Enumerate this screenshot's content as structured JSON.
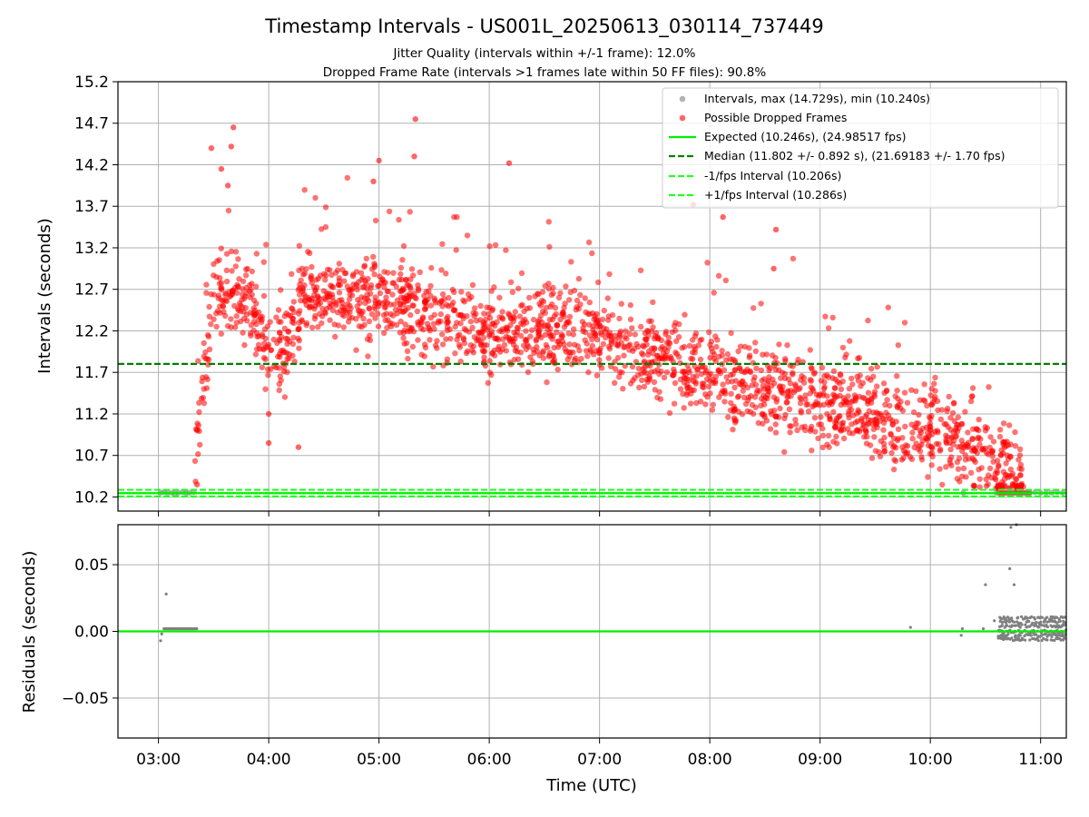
{
  "figure": {
    "title": "Timestamp Intervals - US001L_20250613_030114_737449",
    "subtitle_1": "Jitter Quality (intervals within +/-1 frame): 12.0%",
    "subtitle_2": "Dropped Frame Rate (intervals >1 frames late within 50 FF files): 90.8%"
  },
  "colors": {
    "intervals": "#808080",
    "dropped": "#ff0000",
    "expected": "#00ee00",
    "median": "#008000",
    "bounds": "#22ff22",
    "grid": "#b0b0b0"
  },
  "chart_data": [
    {
      "type": "scatter",
      "xlabel": "",
      "ylabel": "Intervals (seconds)",
      "xlim": [
        2.633,
        11.233
      ],
      "ylim": [
        10.03,
        15.2
      ],
      "yticks": [
        "10.2",
        "10.7",
        "11.2",
        "11.7",
        "12.2",
        "12.7",
        "13.2",
        "13.7",
        "14.2",
        "14.7",
        "15.2"
      ],
      "ytick_values": [
        10.2,
        10.7,
        11.2,
        11.7,
        12.2,
        12.7,
        13.2,
        13.7,
        14.2,
        14.7,
        15.2
      ],
      "grid": true,
      "legend_position": "top-right",
      "legend": [
        "Intervals, max (14.729s), min (10.240s)",
        "Possible Dropped Frames",
        "Expected (10.246s), (24.98517 fps)",
        "Median (11.802 +/- 0.892 s), (21.69183 +/- 1.70 fps)",
        "-1/fps Interval (10.206s)",
        "+1/fps Interval (10.286s)"
      ],
      "lines": [
        {
          "name": "Expected",
          "y": 10.246,
          "style": "solid"
        },
        {
          "name": "Median",
          "y": 11.802,
          "style": "dashed"
        },
        {
          "name": "-1/fps Interval",
          "y": 10.206,
          "style": "dashed"
        },
        {
          "name": "+1/fps Interval",
          "y": 10.286,
          "style": "dashed"
        }
      ],
      "stats": {
        "max": 14.729,
        "min": 10.24,
        "expected": 10.246,
        "median": 11.802,
        "std": 0.892
      },
      "series": [
        {
          "name": "Intervals",
          "x": [
            3.02,
            3.05,
            3.08,
            3.12,
            3.15,
            3.18,
            3.22,
            3.25,
            3.28,
            3.32,
            10.3,
            10.6,
            10.7,
            10.75,
            10.8,
            10.85,
            10.9,
            10.95,
            11.0,
            11.05,
            11.1,
            11.15,
            11.2
          ],
          "y": [
            10.25,
            10.26,
            10.25,
            10.25,
            10.24,
            10.25,
            10.26,
            10.25,
            10.25,
            10.26,
            10.25,
            10.25,
            10.25,
            10.25,
            10.24,
            10.25,
            10.25,
            10.26,
            10.25,
            10.25,
            10.25,
            10.26,
            10.25
          ]
        },
        {
          "name": "Possible Dropped Frames",
          "trend_time": [
            3.33,
            3.36,
            3.42,
            3.5,
            3.6,
            3.7,
            3.9,
            4.0,
            4.15,
            4.3,
            4.5,
            4.7,
            5.0,
            5.3,
            5.5,
            5.7,
            6.0,
            6.3,
            6.6,
            7.0,
            7.3,
            7.6,
            7.9,
            8.2,
            8.5,
            8.8,
            9.1,
            9.4,
            9.7,
            10.0,
            10.3,
            10.5,
            10.7,
            10.8,
            10.85
          ],
          "trend_value": [
            10.4,
            11.0,
            11.7,
            12.45,
            12.7,
            12.65,
            12.35,
            11.95,
            11.9,
            12.55,
            12.6,
            12.6,
            12.6,
            12.45,
            12.3,
            12.35,
            12.15,
            12.2,
            12.25,
            12.1,
            11.95,
            11.8,
            11.75,
            11.6,
            11.45,
            11.4,
            11.3,
            11.2,
            11.05,
            11.0,
            10.85,
            10.7,
            10.55,
            10.4,
            10.3
          ],
          "spread": 0.35,
          "notable_points": {
            "x": [
              3.48,
              3.57,
              3.66,
              3.68,
              3.63,
              4.0,
              5.33,
              5.32,
              5.0,
              4.95,
              6.18,
              7.85,
              8.12,
              8.6,
              8.58,
              4.0,
              4.27,
              3.35
            ],
            "y": [
              14.4,
              14.15,
              14.42,
              14.65,
              13.95,
              10.85,
              14.75,
              14.3,
              14.25,
              14.0,
              14.22,
              13.72,
              13.57,
              13.42,
              12.95,
              11.2,
              10.8,
              10.35
            ]
          }
        }
      ]
    },
    {
      "type": "scatter",
      "xlabel": "Time (UTC)",
      "ylabel": "Residuals (seconds)",
      "xlim": [
        2.633,
        11.233
      ],
      "ylim": [
        -0.08,
        0.08
      ],
      "yticks": [
        "0.05",
        "0.00",
        "−0.05"
      ],
      "ytick_values": [
        0.05,
        0.0,
        -0.05
      ],
      "xticks": [
        "03:00",
        "04:00",
        "05:00",
        "06:00",
        "07:00",
        "08:00",
        "09:00",
        "10:00",
        "11:00"
      ],
      "xtick_values": [
        3,
        4,
        5,
        6,
        7,
        8,
        9,
        10,
        11
      ],
      "grid": true,
      "zero_line": 0.0,
      "series": [
        {
          "name": "Residuals",
          "x": [
            3.02,
            3.03,
            3.07,
            3.05,
            9.82,
            10.28,
            10.29,
            10.48,
            10.5,
            10.63,
            10.66,
            10.72,
            10.73,
            10.76,
            10.78,
            10.58
          ],
          "y": [
            -0.007,
            -0.002,
            0.028,
            0.002,
            0.003,
            -0.003,
            0.002,
            0.002,
            0.035,
            0.0,
            -0.004,
            0.047,
            0.078,
            0.035,
            0.08,
            0.008
          ]
        }
      ],
      "dense_band": {
        "x_start": 10.62,
        "x_end": 11.23,
        "y_values": [
          -0.006,
          -0.003,
          0.0,
          0.004,
          0.007,
          0.01
        ]
      },
      "early_band": {
        "x_start": 3.06,
        "x_end": 3.35,
        "y_value": 0.002
      }
    }
  ]
}
